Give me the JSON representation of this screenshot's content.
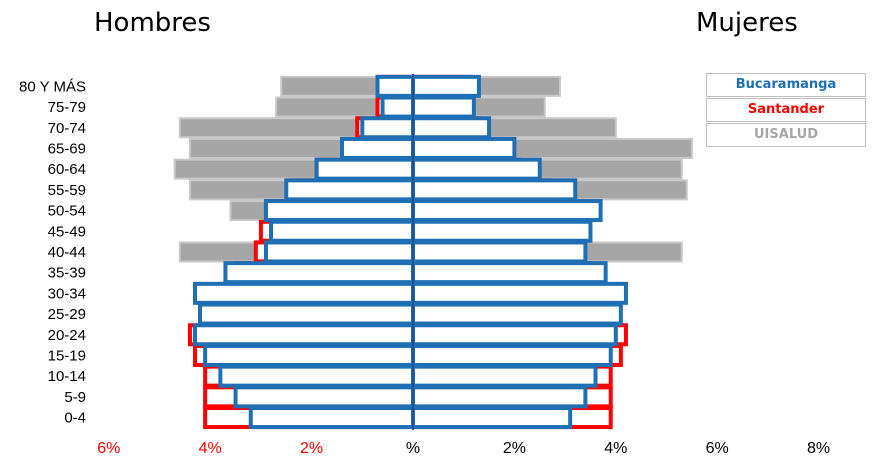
{
  "header": {
    "left_title": "Hombres",
    "right_title": "Mujeres"
  },
  "legend": [
    {
      "label": "Bucaramanga",
      "color": "#1f6fb5"
    },
    {
      "label": "Santander",
      "color": "#ff0000"
    },
    {
      "label": "UISALUD",
      "color": "#a6a6a6"
    }
  ],
  "chart_data": {
    "type": "bar",
    "orientation": "horizontal",
    "subtype": "population-pyramid",
    "categories": [
      "80 Y MÁS",
      "75-79",
      "70-74",
      "65-69",
      "60-64",
      "55-59",
      "50-54",
      "45-49",
      "40-44",
      "35-39",
      "30-34",
      "25-29",
      "20-24",
      "15-19",
      "10-14",
      "5-9",
      "0-4"
    ],
    "xlim": [
      -6,
      8
    ],
    "x_tick_values": [
      -6,
      -4,
      -2,
      0,
      2,
      4,
      6,
      8
    ],
    "x_tick_labels": [
      "6%",
      "4%",
      "2%",
      "%",
      "2%",
      "4%",
      "6%",
      "8%"
    ],
    "x_tick_colors": [
      "#ff0000",
      "#ff0000",
      "#ff0000",
      "#000000",
      "#000000",
      "#000000",
      "#000000",
      "#000000"
    ],
    "series": [
      {
        "name": "UISALUD",
        "color": "#a6a6a6",
        "hombres": [
          2.6,
          2.7,
          4.6,
          4.4,
          4.7,
          4.4,
          3.6,
          0.4,
          4.6,
          1.8,
          0.8,
          0.3,
          3.0,
          3.9,
          2.9,
          2.3,
          1.4
        ],
        "mujeres": [
          2.9,
          2.6,
          4.0,
          5.5,
          5.3,
          5.4,
          3.4,
          0.6,
          5.3,
          2.4,
          1.3,
          0.5,
          2.8,
          3.4,
          2.8,
          1.7,
          1.3
        ]
      },
      {
        "name": "Santander",
        "color": "#ff0000",
        "hombres": [
          0.7,
          0.7,
          1.1,
          1.4,
          1.9,
          2.4,
          2.9,
          3.0,
          3.1,
          3.5,
          3.8,
          4.2,
          4.4,
          4.3,
          4.1,
          4.1,
          4.1
        ],
        "mujeres": [
          1.1,
          1.0,
          1.3,
          1.7,
          2.1,
          2.7,
          3.2,
          3.2,
          3.2,
          3.5,
          3.7,
          3.9,
          4.2,
          4.1,
          3.9,
          3.9,
          3.9
        ]
      },
      {
        "name": "Bucaramanga",
        "color": "#1f6fb5",
        "hombres": [
          0.7,
          0.6,
          1.0,
          1.4,
          1.9,
          2.5,
          2.9,
          2.8,
          2.9,
          3.7,
          4.3,
          4.2,
          4.3,
          4.1,
          3.8,
          3.5,
          3.2
        ],
        "mujeres": [
          1.3,
          1.2,
          1.5,
          2.0,
          2.5,
          3.2,
          3.7,
          3.5,
          3.4,
          3.8,
          4.2,
          4.1,
          4.0,
          3.9,
          3.6,
          3.4,
          3.1
        ]
      }
    ]
  }
}
